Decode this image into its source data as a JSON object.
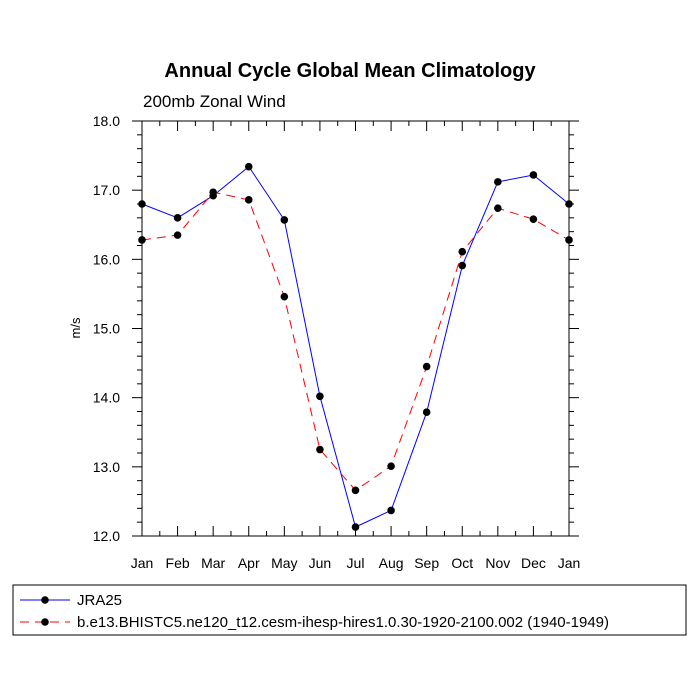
{
  "chart_data": {
    "type": "line",
    "title": "Annual Cycle Global Mean Climatology",
    "subtitle": "200mb Zonal Wind",
    "xlabel": "",
    "ylabel": "m/s",
    "categories": [
      "Jan",
      "Feb",
      "Mar",
      "Apr",
      "May",
      "Jun",
      "Jul",
      "Aug",
      "Sep",
      "Oct",
      "Nov",
      "Dec",
      "Jan"
    ],
    "ylim": [
      12.0,
      18.0
    ],
    "yticks": [
      "12.0",
      "13.0",
      "14.0",
      "15.0",
      "16.0",
      "17.0",
      "18.0"
    ],
    "grid": false,
    "legend_position": "bottom",
    "series": [
      {
        "name": "JRA25",
        "color": "#0000ff",
        "line_style": "solid",
        "values": [
          16.8,
          16.6,
          16.92,
          17.34,
          16.57,
          14.02,
          12.13,
          12.37,
          13.79,
          15.91,
          17.12,
          17.22,
          16.8
        ]
      },
      {
        "name": "b.e13.BHISTC5.ne120_t12.cesm-ihesp-hires1.0.30-1920-2100.002 (1940-1949)",
        "color": "#ff0000",
        "line_style": "dashed",
        "values": [
          16.28,
          16.35,
          16.97,
          16.86,
          15.46,
          13.25,
          12.66,
          13.01,
          14.45,
          16.11,
          16.74,
          16.58,
          16.28
        ]
      }
    ]
  }
}
